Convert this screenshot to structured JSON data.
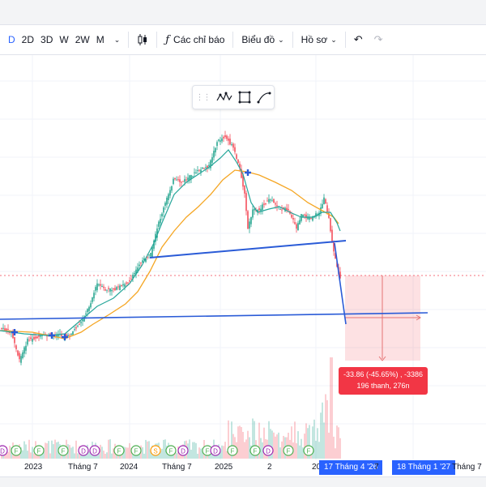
{
  "toolbar": {
    "intervals": [
      "D",
      "2D",
      "3D",
      "W",
      "2W",
      "M"
    ],
    "indicators_label": "Các chỉ báo",
    "chart_type_label": "Biểu đồ",
    "profile_label": "Hồ sơ"
  },
  "events": [
    "D",
    "F",
    "F",
    "F",
    "D",
    "D",
    "F",
    "F",
    "S",
    "F",
    "D",
    "F",
    "D",
    "F",
    "F",
    "D",
    "F",
    "F"
  ],
  "measure": {
    "line1": "-33.86 (-45.65%) , -3386",
    "line2": "196 thanh, 276n"
  },
  "time_axis": {
    "labels": [
      "2023",
      "Tháng 7",
      "2024",
      "Tháng 7",
      "2025",
      "2",
      "20",
      "7",
      "Tháng 7"
    ],
    "badge_start": "17 Tháng 4 '26",
    "badge_end": "18 Tháng 1 '27"
  },
  "colors": {
    "accent": "#2962ff",
    "up": "#089981",
    "down": "#f23645",
    "ma_fast": "#26a69a",
    "ma_slow": "#f5a623",
    "trendline": "#2a5bd7"
  }
}
